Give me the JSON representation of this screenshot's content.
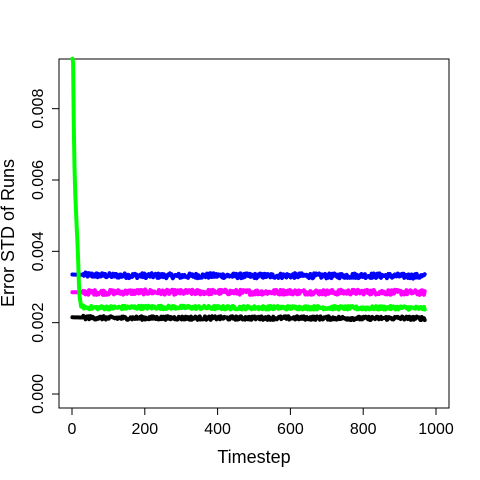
{
  "chart_data": {
    "type": "line",
    "title": "",
    "xlabel": "Timestep",
    "ylabel": "Error STD of Runs",
    "xlim": [
      0,
      1000
    ],
    "ylim": [
      0,
      0.009
    ],
    "x_ticks": [
      0,
      200,
      400,
      600,
      800,
      1000
    ],
    "x_tick_labels": [
      "0",
      "200",
      "400",
      "600",
      "800",
      "1000"
    ],
    "y_ticks": [
      0,
      0.002,
      0.004,
      0.006,
      0.008
    ],
    "y_tick_labels": [
      "0.000",
      "0.002",
      "0.004",
      "0.006",
      "0.008"
    ],
    "grid": false,
    "legend": "none",
    "x_range": [
      1,
      970
    ],
    "series": [
      {
        "color": "#0000ff",
        "x": [
          1,
          100,
          200,
          300,
          400,
          500,
          600,
          700,
          800,
          900,
          970
        ],
        "values": [
          0.00335,
          0.00332,
          0.00332,
          0.00331,
          0.00332,
          0.00331,
          0.00332,
          0.00331,
          0.00332,
          0.00331,
          0.0033
        ],
        "noise": 7e-05
      },
      {
        "color": "#ff00ff",
        "x": [
          1,
          100,
          200,
          300,
          400,
          500,
          600,
          700,
          800,
          900,
          970
        ],
        "values": [
          0.00285,
          0.00285,
          0.00286,
          0.00285,
          0.00286,
          0.00285,
          0.00286,
          0.00285,
          0.00286,
          0.00285,
          0.00284
        ],
        "noise": 7e-05
      },
      {
        "color": "#00ff00",
        "x": [
          1,
          3,
          5,
          8,
          12,
          16,
          20,
          25,
          40,
          100,
          200,
          300,
          400,
          500,
          600,
          700,
          800,
          900,
          970
        ],
        "values": [
          0.0094,
          0.0093,
          0.0075,
          0.0058,
          0.0049,
          0.004,
          0.0028,
          0.00245,
          0.00242,
          0.00242,
          0.00243,
          0.00243,
          0.00242,
          0.00242,
          0.00242,
          0.00242,
          0.00241,
          0.00242,
          0.0024
        ],
        "noise": 5e-05
      },
      {
        "color": "#000000",
        "x": [
          1,
          100,
          200,
          300,
          400,
          500,
          600,
          700,
          800,
          900,
          970
        ],
        "values": [
          0.00215,
          0.00213,
          0.00213,
          0.00213,
          0.00213,
          0.00213,
          0.00213,
          0.00213,
          0.00212,
          0.00213,
          0.00212
        ],
        "noise": 5e-05
      }
    ]
  }
}
